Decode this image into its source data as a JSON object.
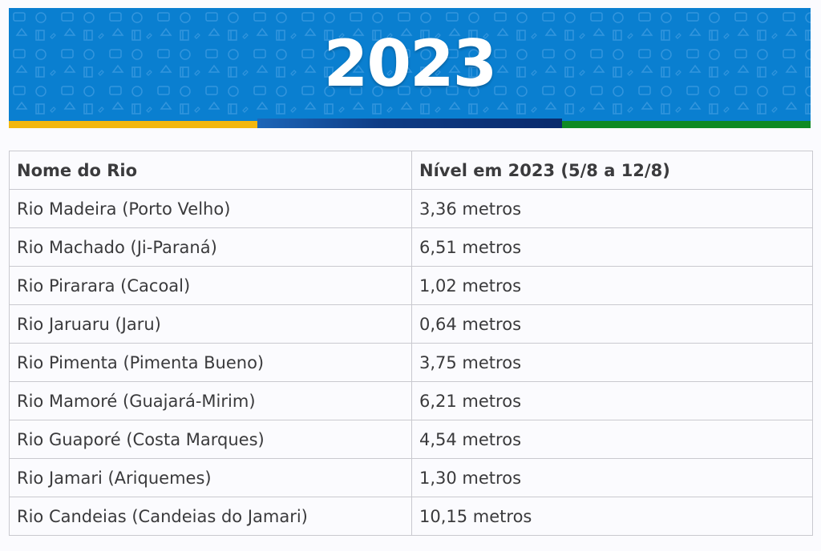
{
  "banner": {
    "year": "2023",
    "colors": {
      "background": "#0a7fd0",
      "stripe_yellow": "#f3b70e",
      "stripe_blue": "#0a2b6c",
      "stripe_green": "#0f8a23"
    }
  },
  "table": {
    "headers": [
      "Nome do Rio",
      "Nível em 2023 (5/8 a 12/8)"
    ],
    "rows": [
      [
        "Rio Madeira (Porto Velho)",
        "3,36 metros"
      ],
      [
        "Rio Machado (Ji-Paraná)",
        "6,51 metros"
      ],
      [
        "Rio Pirarara (Cacoal)",
        "1,02 metros"
      ],
      [
        "Rio Jaruaru (Jaru)",
        "0,64 metros"
      ],
      [
        "Rio Pimenta (Pimenta Bueno)",
        "3,75 metros"
      ],
      [
        "Rio Mamoré (Guajará-Mirim)",
        "6,21 metros"
      ],
      [
        "Rio Guaporé (Costa Marques)",
        "4,54 metros"
      ],
      [
        "Rio Jamari (Ariquemes)",
        "1,30 metros"
      ],
      [
        "Rio Candeias (Candeias do Jamari)",
        "10,15 metros"
      ]
    ]
  }
}
